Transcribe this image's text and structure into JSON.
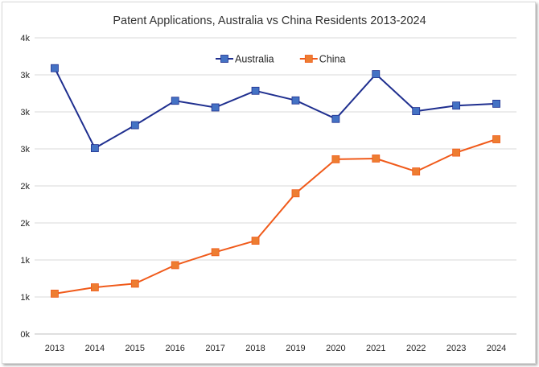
{
  "chart_data": {
    "type": "line",
    "title": "Patent Applications, Australia vs China Residents 2013-2024",
    "x": [
      "2013",
      "2014",
      "2015",
      "2016",
      "2017",
      "2018",
      "2019",
      "2020",
      "2021",
      "2022",
      "2023",
      "2024"
    ],
    "ylim": [
      0,
      4000
    ],
    "y_ticks": [
      0,
      500,
      1000,
      1500,
      2000,
      2500,
      3000,
      3500,
      4000
    ],
    "y_tick_labels": [
      "0k",
      "1k",
      "1k",
      "2k",
      "2k",
      "3k",
      "3k",
      "3k",
      "4k"
    ],
    "grid": true,
    "legend_position": "top-center",
    "series": [
      {
        "name": "Australia",
        "color": "#1f2f8f",
        "marker_color": "#4472c4",
        "values": [
          3590,
          2510,
          2820,
          3150,
          3060,
          3285,
          3155,
          2905,
          3510,
          3010,
          3085,
          3110
        ]
      },
      {
        "name": "China",
        "color": "#f05a1a",
        "marker_color": "#ed7d31",
        "values": [
          545,
          630,
          680,
          930,
          1105,
          1260,
          1900,
          2360,
          2370,
          2195,
          2450,
          2630
        ]
      }
    ]
  }
}
